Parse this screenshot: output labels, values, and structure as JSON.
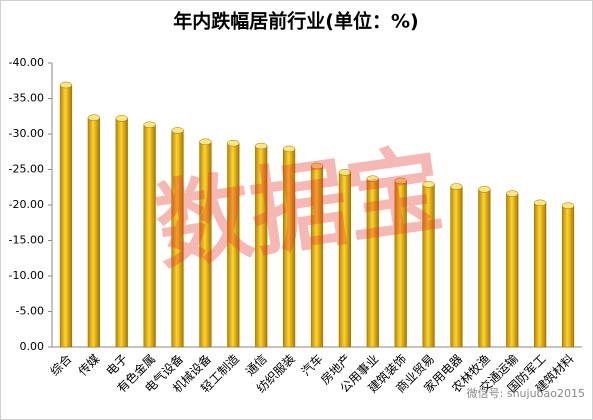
{
  "chart_data": {
    "type": "bar",
    "title": "年内跌幅居前行业(单位：%)",
    "categories": [
      "综合",
      "传媒",
      "电子",
      "有色金属",
      "电气设备",
      "机械设备",
      "轻工制造",
      "通信",
      "纺织服装",
      "汽车",
      "房地产",
      "公用事业",
      "建筑装饰",
      "商业贸易",
      "家用电器",
      "农林牧渔",
      "交通运输",
      "国防军工",
      "建筑材料"
    ],
    "values": [
      -36.9,
      -32.3,
      -32.2,
      -31.3,
      -30.5,
      -28.9,
      -28.7,
      -28.3,
      -27.9,
      -25.5,
      -24.6,
      -23.7,
      -23.4,
      -22.9,
      -22.6,
      -22.2,
      -21.6,
      -20.3,
      -19.9
    ],
    "ylim": [
      0,
      -40
    ],
    "yticks": [
      {
        "value": 0,
        "label": "0.00"
      },
      {
        "value": -5,
        "label": "-5.00"
      },
      {
        "value": -10,
        "label": "-10.00"
      },
      {
        "value": -15,
        "label": "-15.00"
      },
      {
        "value": -20,
        "label": "-20.00"
      },
      {
        "value": -25,
        "label": "-25.00"
      },
      {
        "value": -30,
        "label": "-30.00"
      },
      {
        "value": -35,
        "label": "-35.00"
      },
      {
        "value": -40,
        "label": "-40.00"
      }
    ],
    "grid": false,
    "watermark": "数据宝",
    "footer": "微信号: shujubao2015"
  }
}
